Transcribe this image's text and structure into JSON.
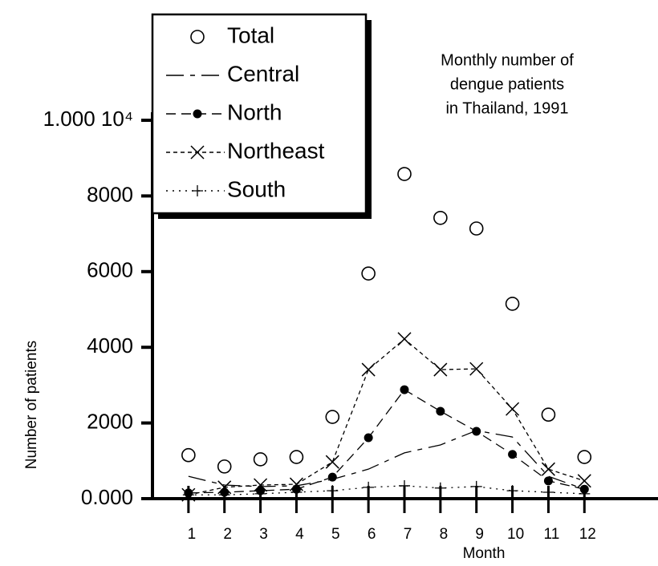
{
  "chart_data": {
    "type": "line",
    "title": [
      "Monthly number of",
      "dengue patients",
      "in Thailand, 1991"
    ],
    "x_label": "Month",
    "y_label": "Number of patients",
    "x": [
      1,
      2,
      3,
      4,
      5,
      6,
      7,
      8,
      9,
      10,
      11,
      12
    ],
    "xlim": [
      0,
      14
    ],
    "xticks": [
      1,
      2,
      3,
      4,
      5,
      6,
      7,
      8,
      9,
      10,
      11,
      12
    ],
    "ylim": [
      0,
      10000
    ],
    "yticks": [
      {
        "value": 0,
        "label": "0.000"
      },
      2000,
      4000,
      6000,
      8000,
      {
        "value": 10000,
        "label": "1.000 10⁴"
      }
    ],
    "legend": "upper left",
    "series": [
      {
        "name": "Total",
        "color": "#000000",
        "marker": "circle",
        "line": "none",
        "values": [
          1150,
          850,
          1040,
          1100,
          2160,
          5950,
          8580,
          7420,
          7140,
          5150,
          2220,
          1100
        ]
      },
      {
        "name": "Central",
        "color": "#000000",
        "marker": "none",
        "line": "long-dash",
        "values": [
          590,
          360,
          320,
          340,
          510,
          780,
          1210,
          1420,
          1800,
          1630,
          590,
          250
        ]
      },
      {
        "name": "North",
        "color": "#000000",
        "marker": "dot",
        "line": "dash",
        "values": [
          150,
          170,
          210,
          250,
          570,
          1610,
          2880,
          2310,
          1780,
          1170,
          470,
          250
        ]
      },
      {
        "name": "Northeast",
        "color": "#000000",
        "marker": "cross",
        "line": "short-dash",
        "values": [
          100,
          300,
          360,
          380,
          970,
          3410,
          4220,
          3410,
          3430,
          2370,
          780,
          470
        ]
      },
      {
        "name": "South",
        "color": "#000000",
        "marker": "plus",
        "line": "dotted",
        "values": [
          100,
          100,
          130,
          170,
          210,
          300,
          340,
          280,
          320,
          210,
          170,
          130
        ]
      }
    ]
  }
}
